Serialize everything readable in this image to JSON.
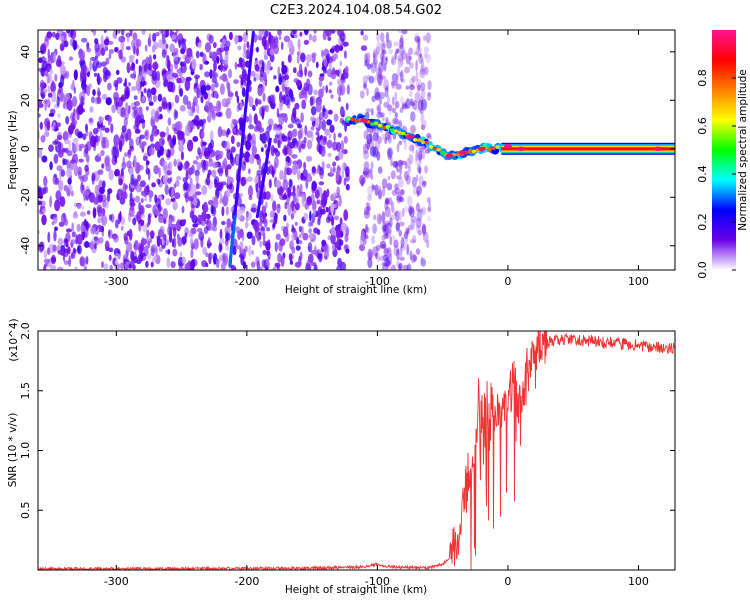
{
  "title": "C2E3.2024.104.08.54.G02",
  "chart_data": [
    {
      "type": "heatmap",
      "xlabel": "Height of straight line (km)",
      "ylabel": "Frequency (Hz)",
      "xlim": [
        -360,
        128
      ],
      "ylim": [
        -50,
        49
      ],
      "xticks": [
        -300,
        -200,
        -100,
        0,
        100
      ],
      "yticks": [
        -40,
        -20,
        0,
        20,
        40
      ],
      "colorbar": {
        "label": "Normalized spectral amplitude",
        "range": [
          0.0,
          1.0
        ],
        "ticks": [
          0.0,
          0.2,
          0.4,
          0.6,
          0.8
        ],
        "colors": [
          "#ffffff",
          "#6a00e8",
          "#0000ff",
          "#00ffff",
          "#00ff00",
          "#ffff00",
          "#ff7f00",
          "#ff0000",
          "#ff1493"
        ]
      },
      "features": {
        "noise_region_x": [
          -360,
          -60
        ],
        "noise_gap_x": [
          -122,
          -112
        ],
        "tilted_streaks": [
          {
            "x": [
              -213,
              -195
            ],
            "y": [
              -48,
              48
            ]
          },
          {
            "x": [
              -192,
              -182
            ],
            "y": [
              -28,
              4
            ]
          }
        ],
        "signal_track": {
          "x": [
            -122,
            -112,
            -100,
            -88,
            -75,
            -65,
            -55,
            -45,
            -38,
            -30,
            -20,
            -10,
            -4,
            2,
            10,
            40,
            80,
            128
          ],
          "y": [
            12,
            12,
            10,
            8,
            5,
            3,
            0,
            -3,
            -2,
            -1,
            0,
            0,
            1,
            1,
            0,
            0,
            0,
            0
          ],
          "peak_amplitude_x": [
            -120,
            128
          ]
        }
      }
    },
    {
      "type": "line",
      "xlabel": "Height of straight line (km)",
      "ylabel": "SNR (10 * v/v)",
      "y_multiplier": "(x10^4)",
      "xlim": [
        -360,
        128
      ],
      "ylim": [
        0,
        2.0
      ],
      "xticks": [
        -300,
        -200,
        -100,
        0,
        100
      ],
      "yticks": [
        0.5,
        1.0,
        1.5,
        2.0
      ],
      "ytick_labels": [
        "0.5",
        "1.0",
        "1.5",
        "2.0"
      ],
      "series": [
        {
          "color": "#ee3333",
          "x": [
            -360,
            -250,
            -150,
            -110,
            -100,
            -95,
            -80,
            -60,
            -50,
            -45,
            -40,
            -35,
            -30,
            -25,
            -22,
            -20,
            -18,
            -15,
            -12,
            -10,
            -5,
            0,
            5,
            10,
            15,
            20,
            25,
            30,
            40,
            60,
            80,
            100,
            128
          ],
          "y": [
            0.01,
            0.01,
            0.015,
            0.025,
            0.05,
            0.03,
            0.02,
            0.02,
            0.05,
            0.1,
            0.2,
            0.45,
            0.8,
            1.0,
            1.45,
            1.2,
            1.5,
            1.2,
            1.35,
            1.3,
            1.28,
            1.45,
            1.55,
            1.45,
            1.7,
            1.75,
            1.85,
            1.9,
            1.93,
            1.92,
            1.9,
            1.88,
            1.85
          ]
        }
      ]
    }
  ]
}
